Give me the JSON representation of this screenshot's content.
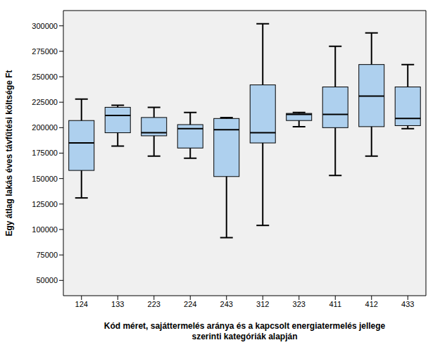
{
  "chart_data": {
    "type": "box",
    "x_label": "Kód méret, sajáttermelés aránya és a kapcsolt energiatermelés jellege\nszerinti kategóriák alapján",
    "y_label": "Egy átlag lakás éves távfűtési költsége Ft",
    "categories": [
      "124",
      "133",
      "223",
      "224",
      "243",
      "312",
      "323",
      "411",
      "412",
      "433"
    ],
    "min": [
      131000,
      182000,
      172000,
      170000,
      92000,
      104000,
      201000,
      153000,
      172000,
      199000
    ],
    "q1": [
      158000,
      195000,
      192000,
      180000,
      152000,
      185000,
      207000,
      200000,
      201000,
      202000
    ],
    "median": [
      185000,
      212000,
      195000,
      199000,
      198000,
      195000,
      213000,
      213000,
      231000,
      209000
    ],
    "q3": [
      207000,
      220000,
      210000,
      203000,
      209000,
      242000,
      214000,
      240000,
      262000,
      240000
    ],
    "max": [
      228000,
      222000,
      220000,
      215000,
      210000,
      302000,
      215000,
      280000,
      293000,
      262000
    ],
    "color": "#aed0ee",
    "ylim": [
      35000,
      315000
    ],
    "yticks": [
      50000,
      75000,
      100000,
      125000,
      150000,
      175000,
      200000,
      225000,
      250000,
      275000,
      300000
    ],
    "grid": false
  }
}
